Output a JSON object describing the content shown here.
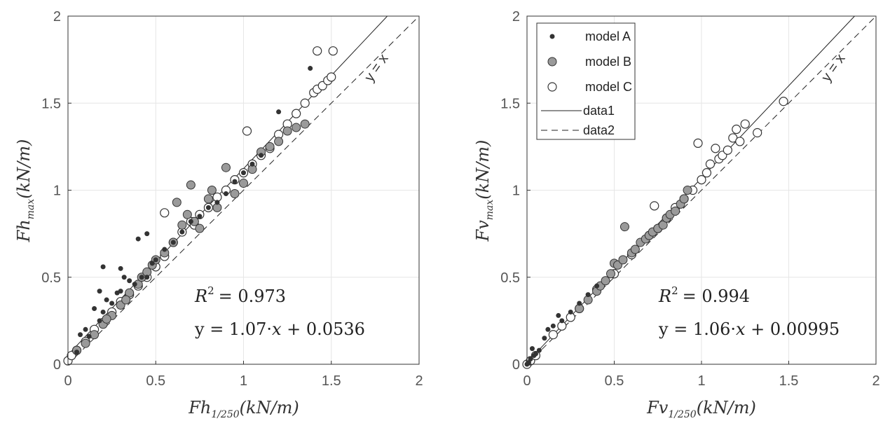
{
  "chart_data": [
    {
      "type": "scatter",
      "xlabel": {
        "base": "Fh",
        "sub": "1/250",
        "units": "(kN/m)"
      },
      "ylabel": {
        "base": "Fh",
        "sub": "max",
        "units": "(kN/m)"
      },
      "xlim": [
        0,
        2
      ],
      "ylim": [
        0,
        2
      ],
      "xticks": [
        "0",
        "0.5",
        "1",
        "1.5",
        "2"
      ],
      "yticks": [
        "0",
        "0.5",
        "1",
        "1.5",
        "2"
      ],
      "grid": true,
      "r2_label": "= 0.973",
      "fit_label": {
        "lhs": "y = 1.07·",
        "var": "x",
        "rhs": " + 0.0536"
      },
      "yx_label": "y = x",
      "fit": {
        "slope": 1.07,
        "intercept": 0.0536
      },
      "series": [
        {
          "name": "model A",
          "marker": "dot",
          "x": [
            0.05,
            0.07,
            0.1,
            0.12,
            0.15,
            0.18,
            0.2,
            0.22,
            0.25,
            0.28,
            0.3,
            0.32,
            0.35,
            0.38,
            0.4,
            0.42,
            0.45,
            0.48,
            0.5,
            0.55,
            0.6,
            0.65,
            0.7,
            0.75,
            0.8,
            0.85,
            0.9,
            0.95,
            1.0,
            1.05,
            1.1,
            1.2,
            1.38,
            0.2,
            0.18,
            0.3,
            0.45
          ],
          "y": [
            0.07,
            0.17,
            0.2,
            0.16,
            0.32,
            0.42,
            0.56,
            0.37,
            0.35,
            0.41,
            0.55,
            0.5,
            0.48,
            0.46,
            0.72,
            0.5,
            0.75,
            0.58,
            0.6,
            0.66,
            0.7,
            0.76,
            0.82,
            0.85,
            0.9,
            0.93,
            0.98,
            1.05,
            1.1,
            1.15,
            1.2,
            1.45,
            1.7,
            0.3,
            0.25,
            0.42,
            0.5
          ]
        },
        {
          "name": "model B",
          "marker": "gray",
          "x": [
            0.05,
            0.1,
            0.15,
            0.2,
            0.25,
            0.3,
            0.35,
            0.4,
            0.42,
            0.45,
            0.48,
            0.5,
            0.55,
            0.6,
            0.62,
            0.65,
            0.7,
            0.72,
            0.75,
            0.8,
            0.85,
            0.9,
            0.95,
            1.0,
            1.05,
            1.1,
            1.15,
            1.2,
            1.25,
            1.3,
            1.35,
            0.22,
            0.33,
            0.68,
            0.82
          ],
          "y": [
            0.08,
            0.12,
            0.17,
            0.23,
            0.28,
            0.34,
            0.41,
            0.46,
            0.5,
            0.53,
            0.57,
            0.6,
            0.64,
            0.7,
            0.93,
            0.8,
            1.03,
            0.82,
            0.78,
            0.95,
            0.9,
            1.13,
            0.98,
            1.04,
            1.12,
            1.22,
            1.25,
            1.28,
            1.34,
            1.36,
            1.38,
            0.26,
            0.37,
            0.86,
            1.0
          ]
        },
        {
          "name": "model C",
          "marker": "open",
          "x": [
            0.0,
            0.02,
            0.05,
            0.1,
            0.15,
            0.2,
            0.25,
            0.3,
            0.35,
            0.4,
            0.45,
            0.5,
            0.55,
            0.6,
            0.65,
            0.7,
            0.75,
            0.8,
            0.85,
            0.9,
            0.95,
            1.0,
            1.05,
            1.1,
            1.15,
            1.2,
            1.25,
            1.3,
            1.35,
            1.4,
            1.42,
            1.45,
            1.48,
            1.5,
            0.55,
            0.72,
            1.02,
            1.42,
            1.51
          ],
          "y": [
            0.02,
            0.05,
            0.08,
            0.13,
            0.2,
            0.24,
            0.3,
            0.36,
            0.4,
            0.45,
            0.5,
            0.56,
            0.62,
            0.7,
            0.76,
            0.82,
            0.86,
            0.9,
            0.96,
            1.0,
            1.06,
            1.1,
            1.15,
            1.2,
            1.24,
            1.32,
            1.38,
            1.44,
            1.5,
            1.56,
            1.58,
            1.6,
            1.63,
            1.65,
            0.87,
            0.8,
            1.34,
            1.8,
            1.8
          ]
        }
      ]
    },
    {
      "type": "scatter",
      "xlabel": {
        "base": "Fv",
        "sub": "1/250",
        "units": "(kN/m)"
      },
      "ylabel": {
        "base": "Fv",
        "sub": "max",
        "units": "(kN/m)"
      },
      "xlim": [
        0,
        2
      ],
      "ylim": [
        0,
        2
      ],
      "xticks": [
        "0",
        "0.5",
        "1",
        "1.5",
        "2"
      ],
      "yticks": [
        "0",
        "0.5",
        "1",
        "1.5",
        "2"
      ],
      "grid": true,
      "r2_label": "= 0.994",
      "fit_label": {
        "lhs": "y = 1.06·",
        "var": "x",
        "rhs": " + 0.00995"
      },
      "yx_label": "y = x",
      "fit": {
        "slope": 1.06,
        "intercept": 0.00995
      },
      "legend": {
        "position": "top-left",
        "entries": [
          "model A",
          "model B",
          "model C",
          "data1",
          "data2"
        ]
      },
      "series": [
        {
          "name": "model A",
          "marker": "dot",
          "x": [
            0.0,
            0.01,
            0.02,
            0.03,
            0.04,
            0.05,
            0.07,
            0.1,
            0.12,
            0.15,
            0.18,
            0.2,
            0.25,
            0.3,
            0.35,
            0.4
          ],
          "y": [
            0.0,
            0.01,
            0.03,
            0.09,
            0.05,
            0.06,
            0.08,
            0.15,
            0.2,
            0.22,
            0.28,
            0.25,
            0.3,
            0.35,
            0.4,
            0.45
          ]
        },
        {
          "name": "model B",
          "marker": "gray",
          "x": [
            0.3,
            0.35,
            0.4,
            0.42,
            0.45,
            0.48,
            0.5,
            0.52,
            0.55,
            0.56,
            0.6,
            0.62,
            0.65,
            0.68,
            0.7,
            0.72,
            0.75,
            0.78,
            0.8,
            0.82,
            0.85,
            0.88,
            0.9,
            0.92
          ],
          "y": [
            0.32,
            0.37,
            0.42,
            0.45,
            0.48,
            0.52,
            0.58,
            0.57,
            0.6,
            0.79,
            0.64,
            0.66,
            0.7,
            0.72,
            0.74,
            0.76,
            0.78,
            0.8,
            0.84,
            0.86,
            0.88,
            0.92,
            0.95,
            1.0
          ]
        },
        {
          "name": "model C",
          "marker": "open",
          "x": [
            0.0,
            0.02,
            0.05,
            0.15,
            0.2,
            0.25,
            0.3,
            0.4,
            0.5,
            0.6,
            0.7,
            0.73,
            0.75,
            0.8,
            0.85,
            0.9,
            0.95,
            0.98,
            1.0,
            1.03,
            1.05,
            1.08,
            1.1,
            1.12,
            1.15,
            1.18,
            1.2,
            1.22,
            1.25,
            1.32,
            1.47
          ],
          "y": [
            0.0,
            0.02,
            0.05,
            0.17,
            0.22,
            0.27,
            0.32,
            0.43,
            0.52,
            0.63,
            0.74,
            0.91,
            0.78,
            0.84,
            0.9,
            0.95,
            1.0,
            1.27,
            1.06,
            1.1,
            1.15,
            1.24,
            1.18,
            1.2,
            1.23,
            1.3,
            1.35,
            1.28,
            1.38,
            1.33,
            1.51
          ]
        }
      ]
    }
  ]
}
